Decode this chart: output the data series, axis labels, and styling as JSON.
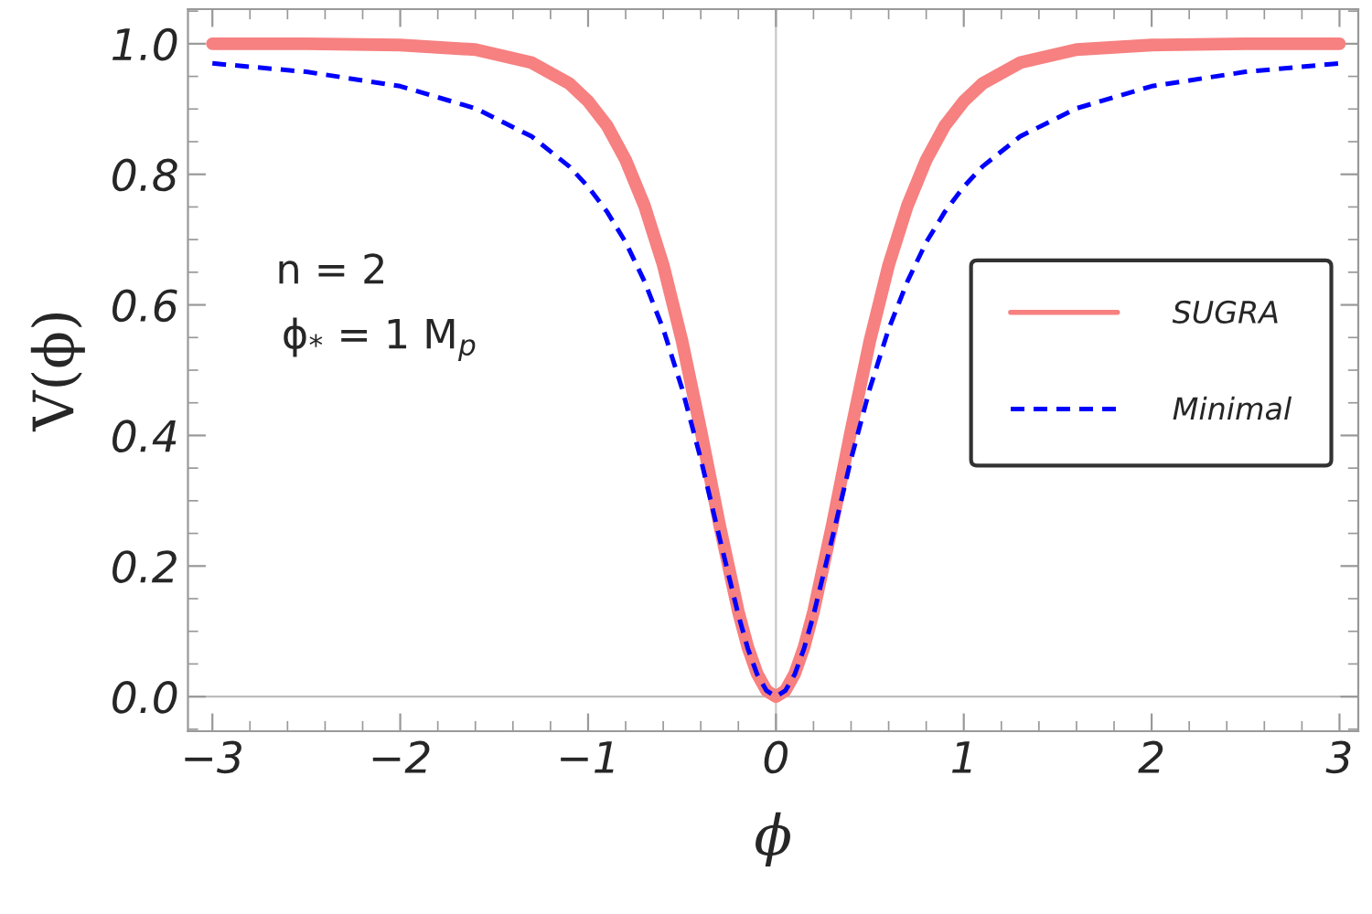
{
  "chart_data": {
    "type": "line",
    "xlabel": "ϕ",
    "ylabel": "V(ϕ)",
    "x": [
      -3,
      -2.5,
      -2,
      -1.6,
      -1.3,
      -1.1,
      -1,
      -0.9,
      -0.8,
      -0.7,
      -0.6,
      -0.5,
      -0.4,
      -0.3,
      -0.2,
      -0.15,
      -0.1,
      -0.05,
      0,
      0.05,
      0.1,
      0.15,
      0.2,
      0.3,
      0.4,
      0.5,
      0.6,
      0.7,
      0.8,
      0.9,
      1,
      1.1,
      1.3,
      1.6,
      2,
      2.5,
      3
    ],
    "series": [
      {
        "name": "SUGRA",
        "color": "#f78080",
        "line_style": "solid",
        "values": [
          1.0,
          1.0,
          0.998,
          0.991,
          0.971,
          0.939,
          0.912,
          0.875,
          0.822,
          0.752,
          0.661,
          0.545,
          0.408,
          0.263,
          0.13,
          0.076,
          0.035,
          0.009,
          0.0,
          0.009,
          0.035,
          0.076,
          0.13,
          0.263,
          0.408,
          0.545,
          0.661,
          0.752,
          0.822,
          0.875,
          0.912,
          0.939,
          0.971,
          0.991,
          0.998,
          1.0,
          1.0
        ]
      },
      {
        "name": "Minimal",
        "color": "#0000ff",
        "line_style": "dashed",
        "values": [
          0.97,
          0.957,
          0.935,
          0.901,
          0.858,
          0.812,
          0.781,
          0.743,
          0.696,
          0.636,
          0.563,
          0.472,
          0.364,
          0.243,
          0.125,
          0.074,
          0.034,
          0.009,
          0.0,
          0.009,
          0.034,
          0.074,
          0.125,
          0.243,
          0.364,
          0.472,
          0.563,
          0.636,
          0.696,
          0.743,
          0.781,
          0.812,
          0.858,
          0.901,
          0.935,
          0.957,
          0.97
        ]
      }
    ],
    "xlim": [
      -3.13,
      3.1
    ],
    "ylim": [
      -0.053,
      1.053
    ],
    "xticks": [
      -3,
      -2,
      -1,
      0,
      1,
      2,
      3
    ],
    "yticks": [
      {
        "value": 0,
        "label": "0.0"
      },
      {
        "value": 0.2,
        "label": "0.2"
      },
      {
        "value": 0.4,
        "label": "0.4"
      },
      {
        "value": 0.6,
        "label": "0.6"
      },
      {
        "value": 0.8,
        "label": "0.8"
      },
      {
        "value": 1,
        "label": "1.0"
      }
    ],
    "ref_lines": [
      {
        "axis": "x",
        "value": 0,
        "color": "#c8c8c8"
      },
      {
        "axis": "y",
        "value": 0,
        "color": "#bcbcbc"
      }
    ],
    "annotations": [
      "n = 2",
      "ϕ$_{*}$ = 1 M$_{p}$"
    ],
    "legend": "right",
    "grid": false
  }
}
